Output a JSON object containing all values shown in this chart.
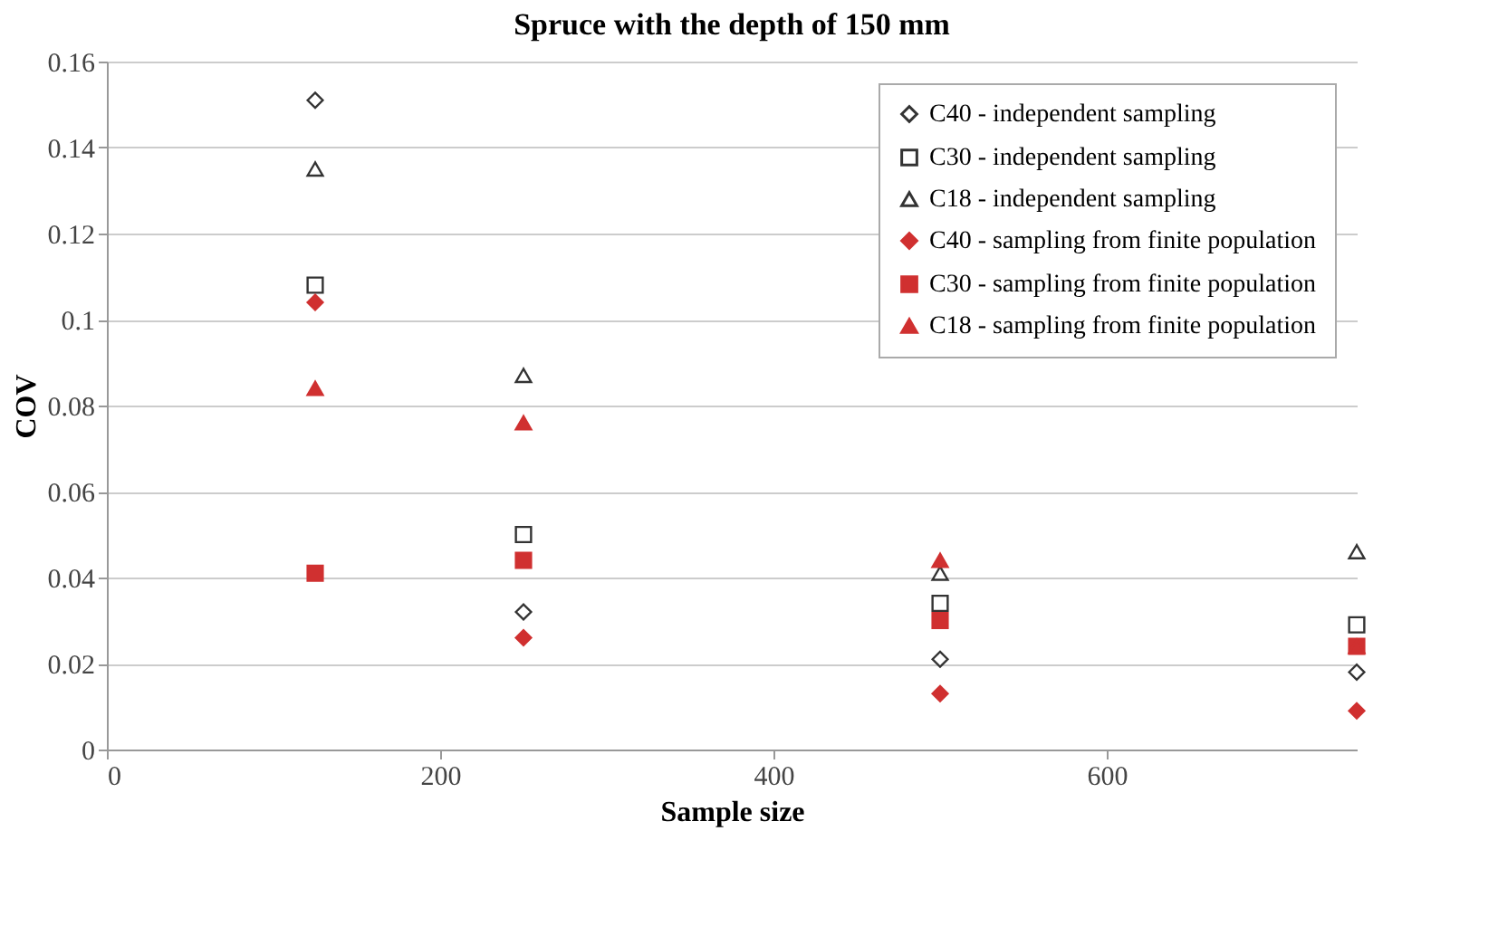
{
  "chart_data": {
    "type": "scatter",
    "title": "Spruce with the depth of 150 mm",
    "xlabel": "Sample size",
    "ylabel": "COV",
    "x": [
      125,
      250,
      500,
      750
    ],
    "series": [
      {
        "name": "C40 - independent sampling",
        "color": "#333333",
        "marker": "diamond",
        "values": [
          0.151,
          0.032,
          0.021,
          0.018
        ]
      },
      {
        "name": "C30 - independent sampling",
        "color": "#333333",
        "marker": "square",
        "values": [
          0.108,
          0.05,
          0.034,
          0.029
        ]
      },
      {
        "name": "C18 - independent sampling",
        "color": "#333333",
        "marker": "triangle",
        "values": [
          0.135,
          0.087,
          0.041,
          0.046
        ]
      },
      {
        "name": "C40 - sampling from finite population",
        "color": "#d03030",
        "marker": "diamond",
        "values": [
          0.104,
          0.026,
          0.013,
          0.009
        ]
      },
      {
        "name": "C30 - sampling from finite population",
        "color": "#d03030",
        "marker": "square",
        "values": [
          0.041,
          0.044,
          0.03,
          0.024
        ]
      },
      {
        "name": "C18 - sampling from finite population",
        "color": "#d03030",
        "marker": "triangle",
        "values": [
          0.084,
          0.076,
          0.044,
          0.024
        ]
      }
    ],
    "xlim": [
      0,
      750
    ],
    "xticks": [
      0,
      200,
      400,
      600
    ],
    "ylim": [
      0,
      0.16
    ],
    "yticks": [
      0,
      0.02,
      0.04,
      0.06,
      0.08,
      0.1,
      0.12,
      0.14,
      0.16
    ],
    "grid": "y",
    "legend": "top right"
  }
}
